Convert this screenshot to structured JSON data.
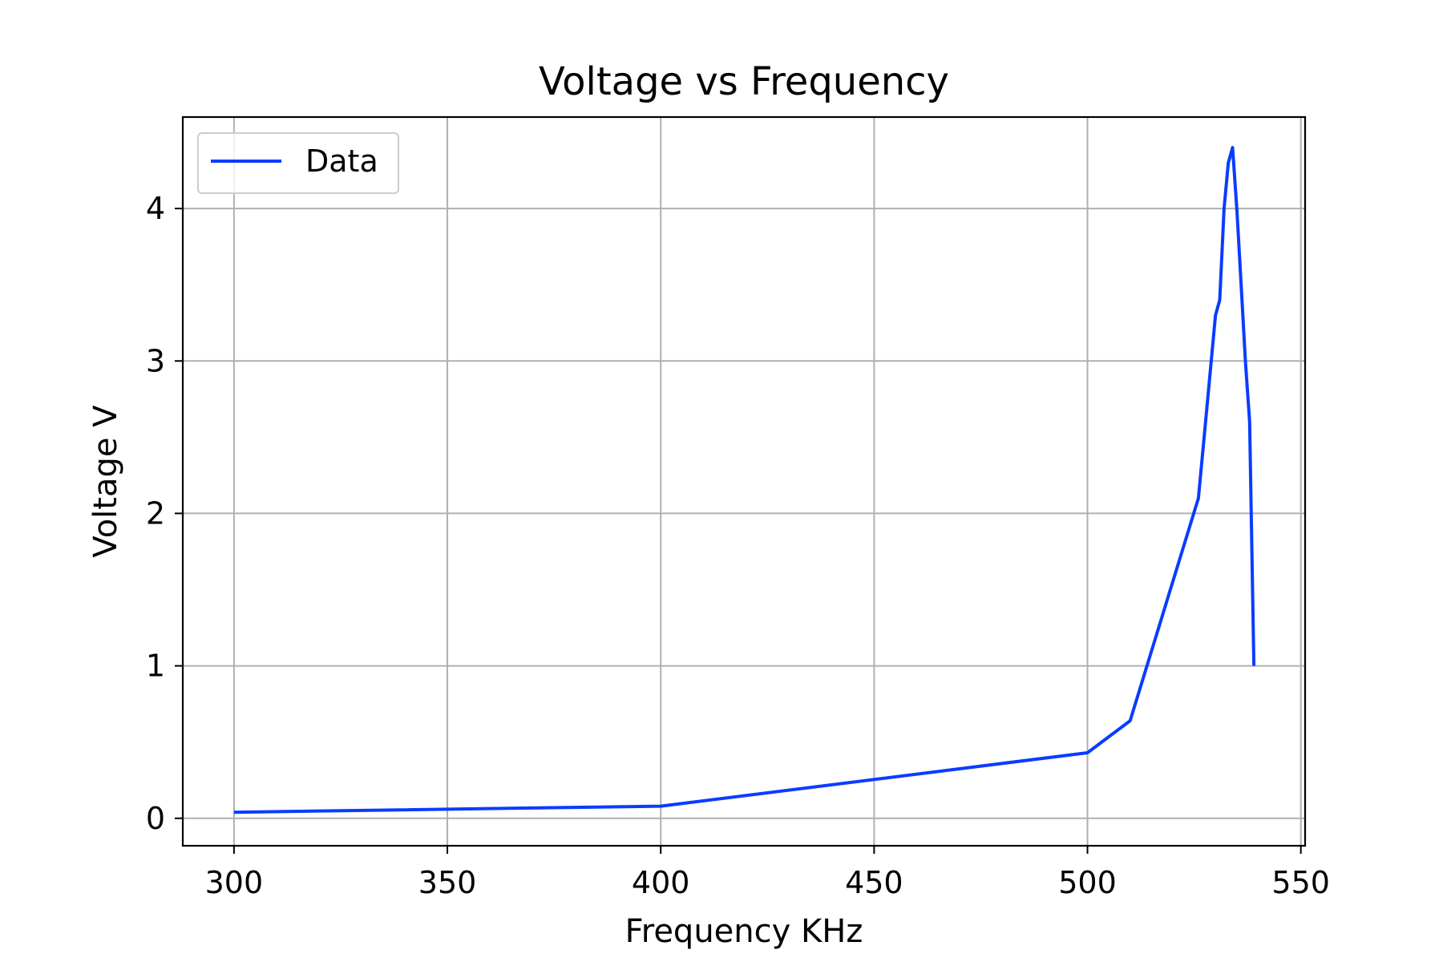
{
  "chart_data": {
    "type": "line",
    "title": "Voltage vs Frequency",
    "xlabel": "Frequency KHz",
    "ylabel": "Voltage V",
    "xlim": [
      288,
      551
    ],
    "ylim": [
      -0.18,
      4.6
    ],
    "x_ticks": [
      300,
      350,
      400,
      450,
      500,
      550
    ],
    "y_ticks": [
      0,
      1,
      2,
      3,
      4
    ],
    "grid": true,
    "legend_position": "top-left",
    "series": [
      {
        "name": "Data",
        "color": "#0a3cff",
        "x": [
          300,
          400,
          500,
          510,
          526,
          528,
          530,
          531,
          532,
          533,
          534,
          535,
          536,
          537,
          538,
          539
        ],
        "y": [
          0.04,
          0.08,
          0.43,
          0.64,
          2.1,
          2.7,
          3.3,
          3.4,
          4.0,
          4.3,
          4.4,
          4.0,
          3.5,
          3.0,
          2.6,
          1.0
        ]
      }
    ]
  }
}
